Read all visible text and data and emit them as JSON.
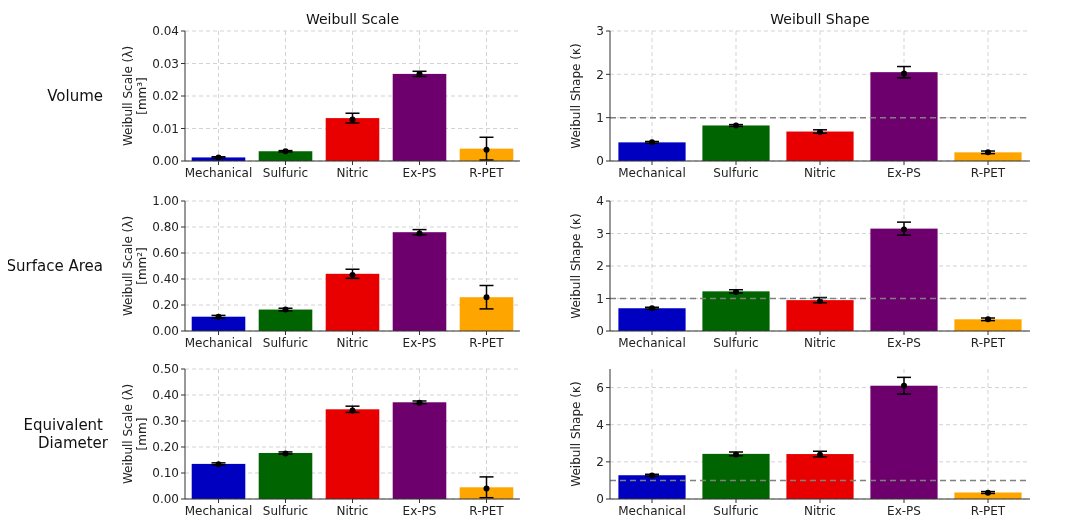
{
  "chart_data": [
    {
      "type": "bar",
      "title": "Weibull Scale",
      "ylabel": "Weibull Scale (λ)\n[mm³]",
      "annotations": [
        "Volume"
      ],
      "categories": [
        "Mechanical",
        "Sulfuric",
        "Nitric",
        "Ex-PS",
        "R-PET"
      ],
      "series": [
        {
          "values": [
            0.0011,
            0.003,
            0.0132,
            0.0268,
            0.0038
          ],
          "errors": [
            0.0002,
            0.0002,
            0.0015,
            0.0008,
            0.0035
          ],
          "colors": [
            "#0000c0",
            "#006400",
            "#e80000",
            "#6e006e",
            "#ffa500"
          ]
        },
        {
          "type": "scatter",
          "x": [
            "Mechanical",
            "Sulfuric",
            "Nitric",
            "Ex-PS",
            "R-PET"
          ],
          "values": [
            0.0011,
            0.003,
            0.0128,
            0.0268,
            0.0035
          ],
          "color": "#000000"
        }
      ],
      "marker": "circle",
      "ylim": [
        0,
        0.04
      ],
      "yticks": [
        {
          "value": 0,
          "label": "0.00"
        },
        {
          "value": 0.01,
          "label": "0.01"
        },
        {
          "value": 0.02,
          "label": "0.02"
        },
        {
          "value": 0.03,
          "label": "0.03"
        },
        {
          "value": 0.04,
          "label": "0.04"
        }
      ],
      "grid": true
    },
    {
      "type": "bar",
      "title": "Weibull Shape",
      "ylabel": "Weibull Shape (κ)",
      "categories": [
        "Mechanical",
        "Sulfuric",
        "Nitric",
        "Ex-PS",
        "R-PET"
      ],
      "series": [
        {
          "values": [
            0.43,
            0.82,
            0.68,
            2.05,
            0.2
          ],
          "errors": [
            0.02,
            0.02,
            0.04,
            0.13,
            0.03
          ],
          "colors": [
            "#0000c0",
            "#006400",
            "#e80000",
            "#6e006e",
            "#ffa500"
          ]
        },
        {
          "type": "scatter",
          "x": [
            "Mechanical",
            "Sulfuric",
            "Nitric",
            "Ex-PS",
            "R-PET"
          ],
          "values": [
            0.43,
            0.82,
            0.67,
            2.02,
            0.2
          ],
          "color": "#000000"
        }
      ],
      "marker": "circle",
      "ylim": [
        0,
        3
      ],
      "yticks": [
        0,
        1,
        2,
        3
      ],
      "grid": true,
      "ref_lines": [
        {
          "axis": "y",
          "value": 1,
          "color": "#808080",
          "line_style": "dashed"
        }
      ]
    },
    {
      "type": "bar",
      "ylabel": "Weibull Scale (λ)\n[mm²]",
      "annotations": [
        "Surface Area"
      ],
      "categories": [
        "Mechanical",
        "Sulfuric",
        "Nitric",
        "Ex-PS",
        "R-PET"
      ],
      "series": [
        {
          "values": [
            0.11,
            0.165,
            0.44,
            0.76,
            0.26
          ],
          "errors": [
            0.01,
            0.01,
            0.035,
            0.02,
            0.09
          ],
          "colors": [
            "#0000c0",
            "#006400",
            "#e80000",
            "#6e006e",
            "#ffa500"
          ]
        },
        {
          "type": "scatter",
          "x": [
            "Mechanical",
            "Sulfuric",
            "Nitric",
            "Ex-PS",
            "R-PET"
          ],
          "values": [
            0.11,
            0.165,
            0.43,
            0.75,
            0.26
          ],
          "color": "#000000"
        }
      ],
      "marker": "circle",
      "ylim": [
        0,
        1
      ],
      "yticks": [
        {
          "value": 0,
          "label": "0.00"
        },
        {
          "value": 0.2,
          "label": "0.20"
        },
        {
          "value": 0.4,
          "label": "0.40"
        },
        {
          "value": 0.6,
          "label": "0.60"
        },
        {
          "value": 0.8,
          "label": "0.80"
        },
        {
          "value": 1,
          "label": "1.00"
        }
      ],
      "grid": true
    },
    {
      "type": "bar",
      "ylabel": "Weibull Shape (κ)",
      "categories": [
        "Mechanical",
        "Sulfuric",
        "Nitric",
        "Ex-PS",
        "R-PET"
      ],
      "series": [
        {
          "values": [
            0.7,
            1.22,
            0.95,
            3.15,
            0.36
          ],
          "errors": [
            0.03,
            0.05,
            0.08,
            0.2,
            0.04
          ],
          "colors": [
            "#0000c0",
            "#006400",
            "#e80000",
            "#6e006e",
            "#ffa500"
          ]
        },
        {
          "type": "scatter",
          "x": [
            "Mechanical",
            "Sulfuric",
            "Nitric",
            "Ex-PS",
            "R-PET"
          ],
          "values": [
            0.7,
            1.2,
            0.92,
            3.12,
            0.36
          ],
          "color": "#000000"
        }
      ],
      "marker": "circle",
      "ylim": [
        0,
        4
      ],
      "yticks": [
        0,
        1,
        2,
        3,
        4
      ],
      "grid": true,
      "ref_lines": [
        {
          "axis": "y",
          "value": 1,
          "color": "#808080",
          "line_style": "dashed"
        }
      ]
    },
    {
      "type": "bar",
      "ylabel": "Weibull Scale (λ)\n[mm]",
      "annotations": [
        "Equivalent\nDiameter"
      ],
      "categories": [
        "Mechanical",
        "Sulfuric",
        "Nitric",
        "Ex-PS",
        "R-PET"
      ],
      "series": [
        {
          "values": [
            0.135,
            0.177,
            0.345,
            0.372,
            0.045
          ],
          "errors": [
            0.004,
            0.004,
            0.012,
            0.005,
            0.04
          ],
          "colors": [
            "#0000c0",
            "#006400",
            "#e80000",
            "#6e006e",
            "#ffa500"
          ]
        },
        {
          "type": "scatter",
          "x": [
            "Mechanical",
            "Sulfuric",
            "Nitric",
            "Ex-PS",
            "R-PET"
          ],
          "values": [
            0.134,
            0.175,
            0.34,
            0.37,
            0.04
          ],
          "color": "#000000"
        }
      ],
      "marker": "circle",
      "ylim": [
        0,
        0.5
      ],
      "yticks": [
        {
          "value": 0,
          "label": "0.00"
        },
        {
          "value": 0.1,
          "label": "0.10"
        },
        {
          "value": 0.2,
          "label": "0.20"
        },
        {
          "value": 0.3,
          "label": "0.30"
        },
        {
          "value": 0.4,
          "label": "0.40"
        },
        {
          "value": 0.5,
          "label": "0.50"
        }
      ],
      "grid": true
    },
    {
      "type": "bar",
      "ylabel": "Weibull Shape (κ)",
      "categories": [
        "Mechanical",
        "Sulfuric",
        "Nitric",
        "Ex-PS",
        "R-PET"
      ],
      "series": [
        {
          "values": [
            1.28,
            2.43,
            2.42,
            6.1,
            0.35
          ],
          "errors": [
            0.05,
            0.1,
            0.15,
            0.45,
            0.05
          ],
          "colors": [
            "#0000c0",
            "#006400",
            "#e80000",
            "#6e006e",
            "#ffa500"
          ]
        },
        {
          "type": "scatter",
          "x": [
            "Mechanical",
            "Sulfuric",
            "Nitric",
            "Ex-PS",
            "R-PET"
          ],
          "values": [
            1.27,
            2.4,
            2.38,
            6.1,
            0.34
          ],
          "color": "#000000"
        }
      ],
      "marker": "circle",
      "ylim": [
        0,
        7
      ],
      "yticks": [
        0,
        2,
        4,
        6
      ],
      "grid": true,
      "ref_lines": [
        {
          "axis": "y",
          "value": 1,
          "color": "#808080",
          "line_style": "dashed"
        }
      ]
    }
  ]
}
